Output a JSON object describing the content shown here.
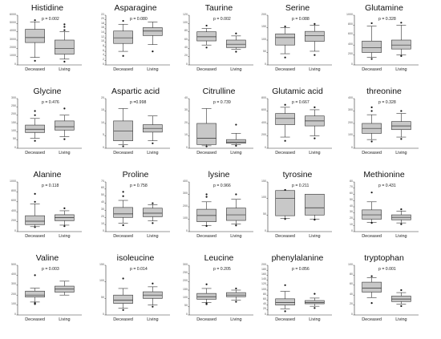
{
  "chart_data": [
    {
      "type": "box",
      "title": "Histidine",
      "categories": [
        "Deceased",
        "Living"
      ],
      "p_label": "p = 0.002",
      "ylim": [
        0,
        6000
      ],
      "yticks": [
        "0",
        "1000",
        "2000",
        "3000",
        "4000",
        "5000",
        "6000"
      ],
      "boxes": [
        {
          "whislo": 900,
          "q1": 2700,
          "med": 3300,
          "q3": 4300,
          "whishi": 5200,
          "outliers": [
            500,
            5400
          ]
        },
        {
          "whislo": 700,
          "q1": 1300,
          "med": 2000,
          "q3": 3000,
          "whishi": 4000,
          "outliers": [
            400,
            4200,
            4600,
            4900
          ]
        }
      ]
    },
    {
      "type": "box",
      "title": "Asparagine",
      "categories": [
        "Deceased",
        "Living"
      ],
      "p_label": "p = 0.080",
      "ylim": [
        0,
        22
      ],
      "yticks": [
        "0",
        "2",
        "4",
        "6",
        "8",
        "10",
        "12",
        "14",
        "16",
        "18",
        "20",
        "22"
      ],
      "boxes": [
        {
          "whislo": 6,
          "q1": 9.5,
          "med": 12,
          "q3": 15,
          "whishi": 18,
          "outliers": [
            4,
            19.5
          ]
        },
        {
          "whislo": 9,
          "q1": 13,
          "med": 15,
          "q3": 16.5,
          "whishi": 19,
          "outliers": [
            6
          ]
        }
      ]
    },
    {
      "type": "box",
      "title": "Taurine",
      "categories": [
        "Deceased",
        "Living"
      ],
      "p_label": "p = 0.002",
      "ylim": [
        0,
        120
      ],
      "yticks": [
        "0",
        "20",
        "40",
        "60",
        "80",
        "100",
        "120"
      ],
      "boxes": [
        {
          "whislo": 48,
          "q1": 58,
          "med": 68,
          "q3": 80,
          "whishi": 88,
          "outliers": [
            42,
            95
          ]
        },
        {
          "whislo": 38,
          "q1": 42,
          "med": 50,
          "q3": 60,
          "whishi": 70,
          "outliers": [
            32,
            76
          ]
        }
      ]
    },
    {
      "type": "box",
      "title": "Serine",
      "categories": [
        "Deceased",
        "Living"
      ],
      "p_label": "p = 0.088",
      "ylim": [
        0,
        200
      ],
      "yticks": [
        "0",
        "50",
        "100",
        "150",
        "200"
      ],
      "boxes": [
        {
          "whislo": 45,
          "q1": 80,
          "med": 110,
          "q3": 125,
          "whishi": 150,
          "outliers": [
            30,
            155
          ]
        },
        {
          "whislo": 55,
          "q1": 95,
          "med": 118,
          "q3": 135,
          "whishi": 160,
          "outliers": [
            40,
            165
          ]
        }
      ]
    },
    {
      "type": "box",
      "title": "Glutamine",
      "categories": [
        "Deceased",
        "Living"
      ],
      "p_label": "p = 0.328",
      "ylim": [
        0,
        1000
      ],
      "yticks": [
        "0",
        "200",
        "400",
        "600",
        "800",
        "1000"
      ],
      "boxes": [
        {
          "whislo": 150,
          "q1": 250,
          "med": 350,
          "q3": 480,
          "whishi": 780,
          "outliers": [
            120,
            840
          ]
        },
        {
          "whislo": 200,
          "q1": 320,
          "med": 400,
          "q3": 500,
          "whishi": 800,
          "outliers": [
            180,
            850
          ]
        }
      ]
    },
    {
      "type": "box",
      "title": "Glycine",
      "categories": [
        "Deceased",
        "Living"
      ],
      "p_label": "p = 0.476",
      "ylim": [
        0,
        300
      ],
      "yticks": [
        "0",
        "50",
        "100",
        "150",
        "200",
        "250",
        "300"
      ],
      "boxes": [
        {
          "whislo": 60,
          "q1": 95,
          "med": 115,
          "q3": 140,
          "whishi": 180,
          "outliers": [
            45,
            200,
            225
          ]
        },
        {
          "whislo": 70,
          "q1": 110,
          "med": 130,
          "q3": 165,
          "whishi": 200,
          "outliers": [
            55,
            240
          ]
        }
      ]
    },
    {
      "type": "box",
      "title": "Aspartic acid",
      "categories": [
        "Deceased",
        "Living"
      ],
      "p_label": "p =0.998",
      "ylim": [
        0,
        20
      ],
      "yticks": [
        "0",
        "5",
        "10",
        "15",
        "20"
      ],
      "boxes": [
        {
          "whislo": 1.5,
          "q1": 3,
          "med": 7,
          "q3": 11,
          "whishi": 16,
          "outliers": [
            0.8
          ]
        },
        {
          "whislo": 3,
          "q1": 6.5,
          "med": 8,
          "q3": 9.5,
          "whishi": 13,
          "outliers": [
            2
          ]
        }
      ]
    },
    {
      "type": "box",
      "title": "Citrulline",
      "categories": [
        "Deceased",
        "Living"
      ],
      "p_label": "p = 0.739",
      "ylim": [
        0,
        40
      ],
      "yticks": [
        "0",
        "10",
        "20",
        "30",
        "40"
      ],
      "boxes": [
        {
          "whislo": 2,
          "q1": 3,
          "med": 8,
          "q3": 20,
          "whishi": 32,
          "outliers": [
            1.5
          ]
        },
        {
          "whislo": 3,
          "q1": 4,
          "med": 5,
          "q3": 7,
          "whishi": 12,
          "outliers": [
            2,
            19
          ]
        }
      ]
    },
    {
      "type": "box",
      "title": "Glutamic acid",
      "categories": [
        "Deceased",
        "Living"
      ],
      "p_label": "p = 0.667",
      "ylim": [
        0,
        800
      ],
      "yticks": [
        "0",
        "200",
        "400",
        "600",
        "800"
      ],
      "boxes": [
        {
          "whislo": 180,
          "q1": 380,
          "med": 480,
          "q3": 560,
          "whishi": 660,
          "outliers": [
            120,
            700
          ]
        },
        {
          "whislo": 200,
          "q1": 360,
          "med": 440,
          "q3": 520,
          "whishi": 620,
          "outliers": [
            160,
            660
          ]
        }
      ]
    },
    {
      "type": "box",
      "title": "threonine",
      "categories": [
        "Deceased",
        "Living"
      ],
      "p_label": "p = 0.328",
      "ylim": [
        0,
        400
      ],
      "yticks": [
        "0",
        "100",
        "200",
        "300",
        "400"
      ],
      "boxes": [
        {
          "whislo": 70,
          "q1": 120,
          "med": 160,
          "q3": 200,
          "whishi": 270,
          "outliers": [
            55,
            300,
            330
          ]
        },
        {
          "whislo": 90,
          "q1": 150,
          "med": 180,
          "q3": 215,
          "whishi": 280,
          "outliers": [
            75,
            300
          ]
        }
      ]
    },
    {
      "type": "box",
      "title": "Alanine",
      "categories": [
        "Deceased",
        "Living"
      ],
      "p_label": "p = 0.118",
      "ylim": [
        0,
        1000
      ],
      "yticks": [
        "0",
        "200",
        "400",
        "600",
        "800",
        "1000"
      ],
      "boxes": [
        {
          "whislo": 100,
          "q1": 140,
          "med": 210,
          "q3": 320,
          "whishi": 560,
          "outliers": [
            90,
            600,
            760
          ]
        },
        {
          "whislo": 130,
          "q1": 220,
          "med": 280,
          "q3": 340,
          "whishi": 420,
          "outliers": [
            110,
            470
          ]
        }
      ]
    },
    {
      "type": "box",
      "title": "Proline",
      "categories": [
        "Deceased",
        "Living"
      ],
      "p_label": "p = 0.758",
      "ylim": [
        0,
        70
      ],
      "yticks": [
        "0",
        "10",
        "20",
        "30",
        "40",
        "50",
        "60",
        "70"
      ],
      "boxes": [
        {
          "whislo": 12,
          "q1": 20,
          "med": 25,
          "q3": 34,
          "whishi": 44,
          "outliers": [
            9,
            50,
            56
          ]
        },
        {
          "whislo": 15,
          "q1": 21,
          "med": 26,
          "q3": 33,
          "whishi": 38,
          "outliers": [
            12,
            40
          ]
        }
      ]
    },
    {
      "type": "box",
      "title": "lysine",
      "categories": [
        "Deceased",
        "Living"
      ],
      "p_label": "p = 0.966",
      "ylim": [
        0,
        400
      ],
      "yticks": [
        "0",
        "100",
        "200",
        "300",
        "400"
      ],
      "boxes": [
        {
          "whislo": 50,
          "q1": 80,
          "med": 130,
          "q3": 180,
          "whishi": 240,
          "outliers": [
            45,
            280,
            300
          ]
        },
        {
          "whislo": 60,
          "q1": 90,
          "med": 135,
          "q3": 190,
          "whishi": 260,
          "outliers": [
            50,
            300
          ]
        }
      ]
    },
    {
      "type": "box",
      "title": "tyrosine",
      "categories": [
        "Deceased",
        "Living"
      ],
      "p_label": "p = 0.211",
      "ylim": [
        0,
        150
      ],
      "yticks": [
        "0",
        "50",
        "100",
        "150"
      ],
      "boxes": [
        {
          "whislo": 40,
          "q1": 48,
          "med": 100,
          "q3": 124,
          "whishi": 124,
          "outliers": [
            38,
            126
          ]
        },
        {
          "whislo": 38,
          "q1": 50,
          "med": 72,
          "q3": 113,
          "whishi": 113,
          "outliers": [
            36
          ]
        }
      ]
    },
    {
      "type": "box",
      "title": "Methionine",
      "categories": [
        "Deceased",
        "Living"
      ],
      "p_label": "p = 0.431",
      "ylim": [
        0,
        80
      ],
      "yticks": [
        "0",
        "10",
        "20",
        "30",
        "40",
        "50",
        "60",
        "70",
        "80"
      ],
      "boxes": [
        {
          "whislo": 15,
          "q1": 20,
          "med": 27,
          "q3": 35,
          "whishi": 48,
          "outliers": [
            14,
            63
          ]
        },
        {
          "whislo": 14,
          "q1": 19,
          "med": 23,
          "q3": 27,
          "whishi": 33,
          "outliers": [
            12,
            36
          ]
        }
      ]
    },
    {
      "type": "box",
      "title": "Valine",
      "categories": [
        "Deceased",
        "Living"
      ],
      "p_label": "p = 0.003",
      "ylim": [
        0,
        500
      ],
      "yticks": [
        "0",
        "100",
        "200",
        "300",
        "400",
        "500"
      ],
      "boxes": [
        {
          "whislo": 130,
          "q1": 180,
          "med": 200,
          "q3": 240,
          "whishi": 270,
          "outliers": [
            110,
            120,
            400
          ]
        },
        {
          "whislo": 200,
          "q1": 230,
          "med": 260,
          "q3": 290,
          "whishi": 340,
          "outliers": []
        }
      ]
    },
    {
      "type": "box",
      "title": "isoleucine",
      "categories": [
        "Deceased",
        "Living"
      ],
      "p_label": "p = 0.014",
      "ylim": [
        0,
        150
      ],
      "yticks": [
        "0",
        "50",
        "100",
        "150"
      ],
      "boxes": [
        {
          "whislo": 20,
          "q1": 35,
          "med": 45,
          "q3": 60,
          "whishi": 80,
          "outliers": [
            15,
            110
          ]
        },
        {
          "whislo": 30,
          "q1": 50,
          "med": 60,
          "q3": 70,
          "whishi": 85,
          "outliers": [
            25,
            95
          ]
        }
      ]
    },
    {
      "type": "box",
      "title": "Leucine",
      "categories": [
        "Deceased",
        "Living"
      ],
      "p_label": "p = 0.205",
      "ylim": [
        0,
        300
      ],
      "yticks": [
        "0",
        "50",
        "100",
        "150",
        "200",
        "250",
        "300"
      ],
      "boxes": [
        {
          "whislo": 75,
          "q1": 95,
          "med": 110,
          "q3": 130,
          "whishi": 160,
          "outliers": [
            65,
            70,
            185
          ]
        },
        {
          "whislo": 90,
          "q1": 110,
          "med": 120,
          "q3": 135,
          "whishi": 150,
          "outliers": [
            80,
            160
          ]
        }
      ]
    },
    {
      "type": "box",
      "title": "phenylalanine",
      "categories": [
        "Deceased",
        "Living"
      ],
      "p_label": "p = 0.856",
      "ylim": [
        0,
        200
      ],
      "yticks": [
        "0",
        "20",
        "40",
        "60",
        "80",
        "100",
        "120",
        "140",
        "160",
        "180",
        "200"
      ],
      "boxes": [
        {
          "whislo": 25,
          "q1": 40,
          "med": 50,
          "q3": 65,
          "whishi": 95,
          "outliers": [
            15,
            120
          ]
        },
        {
          "whislo": 35,
          "q1": 45,
          "med": 50,
          "q3": 58,
          "whishi": 68,
          "outliers": [
            28,
            85
          ]
        }
      ]
    },
    {
      "type": "box",
      "title": "tryptophan",
      "categories": [
        "Deceased",
        "Living"
      ],
      "p_label": "p = 0.001",
      "ylim": [
        0,
        100
      ],
      "yticks": [
        "0",
        "20",
        "40",
        "60",
        "80",
        "100"
      ],
      "boxes": [
        {
          "whislo": 35,
          "q1": 46,
          "med": 54,
          "q3": 66,
          "whishi": 75,
          "outliers": [
            24,
            78
          ]
        },
        {
          "whislo": 22,
          "q1": 27,
          "med": 32,
          "q3": 38,
          "whishi": 45,
          "outliers": [
            18,
            50
          ]
        }
      ]
    }
  ],
  "style": {
    "box_fill": "#c8c8c8",
    "stroke": "#333333",
    "marker_color": "#111111"
  }
}
